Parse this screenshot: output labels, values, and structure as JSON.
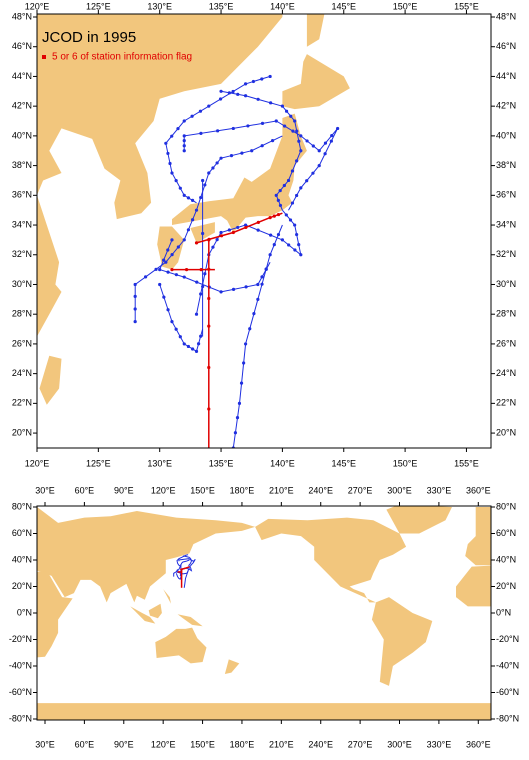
{
  "top_map": {
    "title": "JCOD in 1995",
    "legend": "5 or 6 of station information flag",
    "lon_labels": [
      "120°E",
      "125°E",
      "130°E",
      "135°E",
      "140°E",
      "145°E",
      "150°E",
      "155°E"
    ],
    "lat_labels": [
      "48°N",
      "46°N",
      "44°N",
      "42°N",
      "40°N",
      "38°N",
      "36°N",
      "34°N",
      "32°N",
      "30°N",
      "28°N",
      "26°N",
      "24°N",
      "22°N",
      "20°N"
    ]
  },
  "bottom_map": {
    "lon_labels": [
      "30°E",
      "60°E",
      "90°E",
      "120°E",
      "150°E",
      "180°E",
      "210°E",
      "240°E",
      "270°E",
      "300°E",
      "330°E",
      "360°E"
    ],
    "lat_labels": [
      "80°N",
      "60°N",
      "40°N",
      "20°N",
      "0°N",
      "-20°N",
      "-40°N",
      "-60°N",
      "-80°N"
    ]
  }
}
